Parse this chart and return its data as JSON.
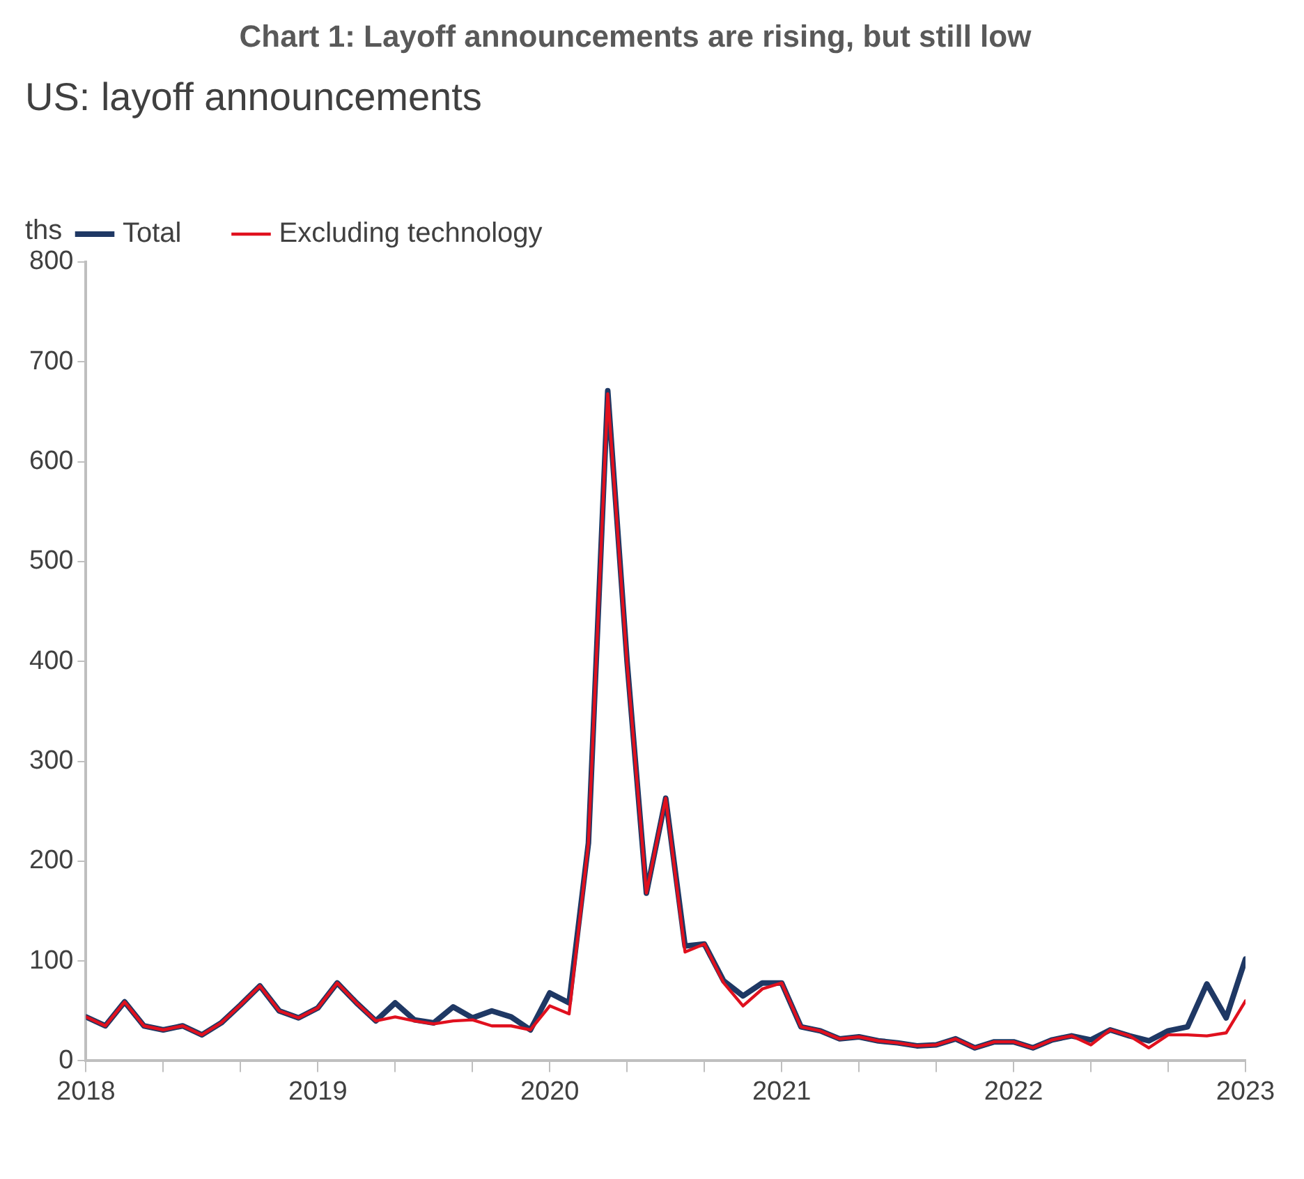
{
  "chart_data": {
    "type": "line",
    "title": "Chart 1: Layoff announcements are rising, but still low",
    "subtitle": "US: layoff announcements",
    "ylabel": "ths",
    "x": [
      "2018-01",
      "2018-02",
      "2018-03",
      "2018-04",
      "2018-05",
      "2018-06",
      "2018-07",
      "2018-08",
      "2018-09",
      "2018-10",
      "2018-11",
      "2018-12",
      "2019-01",
      "2019-02",
      "2019-03",
      "2019-04",
      "2019-05",
      "2019-06",
      "2019-07",
      "2019-08",
      "2019-09",
      "2019-10",
      "2019-11",
      "2019-12",
      "2020-01",
      "2020-02",
      "2020-03",
      "2020-04",
      "2020-05",
      "2020-06",
      "2020-07",
      "2020-08",
      "2020-09",
      "2020-10",
      "2020-11",
      "2020-12",
      "2021-01",
      "2021-02",
      "2021-03",
      "2021-04",
      "2021-05",
      "2021-06",
      "2021-07",
      "2021-08",
      "2021-09",
      "2021-10",
      "2021-11",
      "2021-12",
      "2022-01",
      "2022-02",
      "2022-03",
      "2022-04",
      "2022-05",
      "2022-06",
      "2022-07",
      "2022-08",
      "2022-09",
      "2022-10",
      "2022-11",
      "2022-12",
      "2023-01"
    ],
    "series": [
      {
        "name": "Total",
        "color": "#1f3864",
        "values": [
          44,
          35,
          59,
          35,
          31,
          35,
          26,
          38,
          56,
          75,
          50,
          43,
          53,
          78,
          58,
          40,
          58,
          41,
          38,
          54,
          43,
          50,
          44,
          31,
          68,
          58,
          218,
          671,
          400,
          168,
          263,
          115,
          117,
          80,
          65,
          78,
          78,
          34,
          30,
          22,
          24,
          20,
          18,
          15,
          16,
          22,
          13,
          19,
          19,
          13,
          21,
          25,
          21,
          31,
          25,
          20,
          30,
          34,
          77,
          43,
          102
        ]
      },
      {
        "name": "Excluding technology",
        "color": "#e0101e",
        "values": [
          44,
          35,
          59,
          35,
          31,
          35,
          26,
          38,
          56,
          75,
          50,
          43,
          53,
          78,
          58,
          40,
          44,
          40,
          37,
          40,
          41,
          35,
          35,
          31,
          55,
          47,
          218,
          668,
          398,
          168,
          263,
          109,
          117,
          78,
          55,
          72,
          78,
          34,
          30,
          22,
          24,
          20,
          18,
          15,
          16,
          22,
          13,
          19,
          19,
          13,
          21,
          25,
          16,
          31,
          25,
          13,
          26,
          26,
          25,
          28,
          60
        ]
      }
    ],
    "xlim": [
      "2018",
      "2023"
    ],
    "xticks": [
      {
        "value": "2018",
        "label": "2018"
      },
      {
        "value": "2018-05",
        "label": null
      },
      {
        "value": "2018-09",
        "label": null
      },
      {
        "value": "2019",
        "label": "2019"
      },
      {
        "value": "2019-05",
        "label": null
      },
      {
        "value": "2019-09",
        "label": null
      },
      {
        "value": "2020",
        "label": "2020"
      },
      {
        "value": "2020-05",
        "label": null
      },
      {
        "value": "2020-09",
        "label": null
      },
      {
        "value": "2021",
        "label": "2021"
      },
      {
        "value": "2021-05",
        "label": null
      },
      {
        "value": "2021-09",
        "label": null
      },
      {
        "value": "2022",
        "label": "2022"
      },
      {
        "value": "2022-05",
        "label": null
      },
      {
        "value": "2022-09",
        "label": null
      },
      {
        "value": "2023",
        "label": "2023"
      }
    ],
    "ylim": [
      0,
      800
    ],
    "yticks": [
      0,
      100,
      200,
      300,
      400,
      500,
      600,
      700,
      800
    ],
    "grid": false,
    "legend": "top left",
    "marker": "none",
    "line_style": "solid"
  }
}
